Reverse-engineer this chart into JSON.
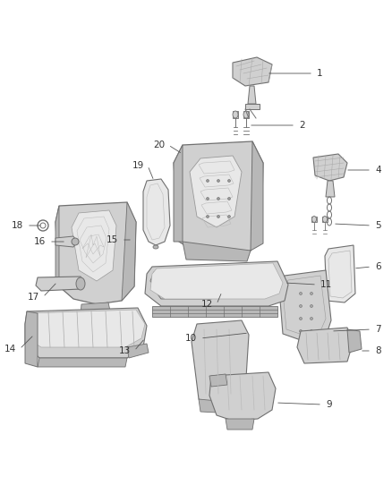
{
  "background_color": "#ffffff",
  "fig_width": 4.38,
  "fig_height": 5.33,
  "dpi": 100,
  "line_color": "#555555",
  "label_color": "#333333",
  "font_size": 7.5,
  "edge_color": "#707070",
  "face_light": "#e8e8e8",
  "face_mid": "#d0d0d0",
  "face_dark": "#b8b8b8",
  "leader_lw": 0.6
}
